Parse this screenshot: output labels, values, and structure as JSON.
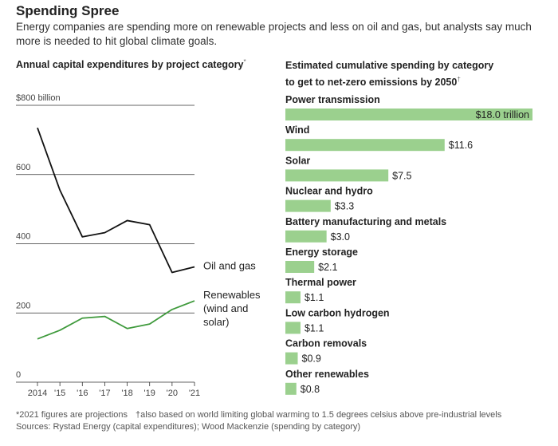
{
  "header": {
    "title": "Spending Spree",
    "subtitle": "Energy companies are spending more on renewable projects and less on oil and gas, but analysts say much more is needed to hit global climate goals."
  },
  "left_chart_heading": "Annual capital expenditures by project category",
  "left_chart_heading_mark": "*",
  "right_chart_heading_line1": "Estimated cumulative spending by category",
  "right_chart_heading_line2": "to get to net-zero emissions by 2050",
  "right_chart_heading_mark": "†",
  "footnotes": {
    "note1": "*2021 figures are projections",
    "note2": "†also based on world limiting global warming to 1.5 degrees celsius above pre-industrial levels",
    "sources": "Sources: Rystad Energy (capital expenditures); Wood Mackenzie (spending by category)"
  },
  "colors": {
    "oil_line": "#111111",
    "renewables_line": "#3f9a3c",
    "bar_fill": "#9bd08e",
    "gridline": "#333333"
  },
  "chart_data": [
    {
      "type": "line",
      "x": [
        "2014",
        "'15",
        "'16",
        "'17",
        "'18",
        "'19",
        "'20",
        "'21"
      ],
      "y_ticks": [
        "0",
        "200",
        "400",
        "600",
        "$800 billion"
      ],
      "y_tick_values": [
        0,
        200,
        400,
        600,
        800
      ],
      "ylim": [
        0,
        800
      ],
      "series": [
        {
          "name": "Oil and gas",
          "values": [
            735,
            555,
            420,
            432,
            467,
            455,
            317,
            333
          ]
        },
        {
          "name": "Renewables (wind and solar)",
          "name_lines": [
            "Renewables",
            "(wind and",
            "solar)"
          ],
          "values": [
            125,
            150,
            185,
            190,
            155,
            168,
            210,
            235
          ]
        }
      ],
      "grid": true
    },
    {
      "type": "bar",
      "orientation": "horizontal",
      "categories": [
        "Power transmission",
        "Wind",
        "Solar",
        "Nuclear and hydro",
        "Battery manufacturing and metals",
        "Energy storage",
        "Thermal power",
        "Low carbon hydrogen",
        "Carbon removals",
        "Other renewables"
      ],
      "values": [
        18.0,
        11.6,
        7.5,
        3.3,
        3.0,
        2.1,
        1.1,
        1.1,
        0.9,
        0.8
      ],
      "value_labels": [
        "$18.0 trillion",
        "$11.6",
        "$7.5",
        "$3.3",
        "$3.0",
        "$2.1",
        "$1.1",
        "$1.1",
        "$0.9",
        "$0.8"
      ]
    }
  ]
}
